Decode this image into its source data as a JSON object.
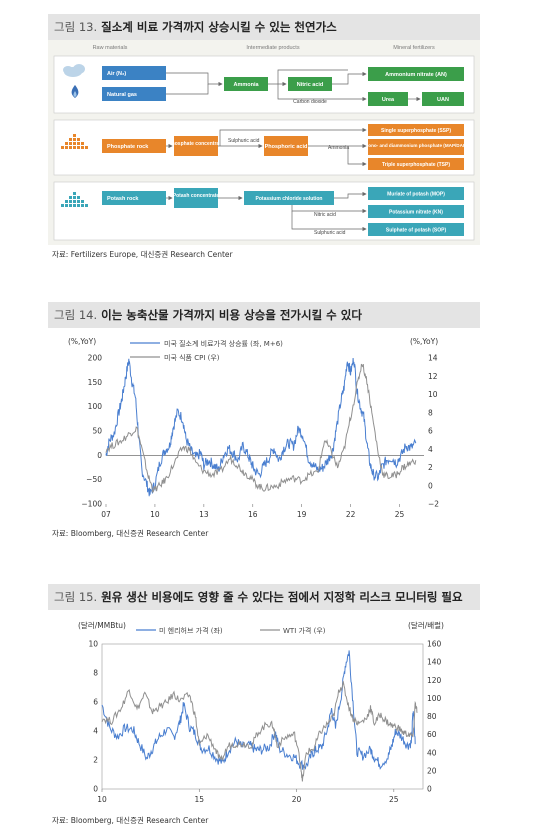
{
  "fig13": {
    "title_num": "그림 13.",
    "title_text": "질소계 비료 가격까지 상승시킬 수 있는 천연가스",
    "headers": [
      "Raw materials",
      "Intermediate products",
      "Mineral fertilizers"
    ],
    "row1": {
      "raw": [
        "Air (N₂)",
        "Natural gas"
      ],
      "mid": [
        "Ammonia",
        "Nitric acid",
        "Carbon dioxide"
      ],
      "out": [
        "Ammonium nitrate (AN)",
        "Urea",
        "UAN"
      ]
    },
    "row2": {
      "raw": "Phosphate rock",
      "mid": [
        "Phosphate concentrate",
        "Sulphuric acid",
        "Phosphoric acid",
        "Ammonia"
      ],
      "out": [
        "Single superphosphate (SSP)",
        "Mono- and diammonium phosphate (MAP/DAP)",
        "Triple superphosphate (TSP)"
      ]
    },
    "row3": {
      "raw": "Potash rock",
      "mid": [
        "Potash concentrate",
        "Potassium chloride solution",
        "Nitric acid",
        "Sulphuric acid"
      ],
      "out": [
        "Muriate of potash (MOP)",
        "Potassium nitrate (KN)",
        "Sulphate of potash (SOP)"
      ]
    },
    "source": "자료: Fertilizers Europe, 대신증권 Research Center"
  },
  "fig14": {
    "title_num": "그림 14.",
    "title_text": "이는 농축산물 가격까지 비용 상승을 전가시킬 수 있다",
    "source": "자료: Bloomberg, 대신증권 Research Center",
    "chart_data": {
      "type": "line",
      "left_unit": "(%,YoY)",
      "right_unit": "(%,YoY)",
      "x_ticks": [
        "07",
        "10",
        "13",
        "16",
        "19",
        "22",
        "25"
      ],
      "left_ticks": [
        "200",
        "150",
        "100",
        "50",
        "0",
        "-50",
        "-100"
      ],
      "right_ticks": [
        "14",
        "12",
        "10",
        "8",
        "6",
        "4",
        "2",
        "0",
        "-2"
      ],
      "ylim_left": [
        -100,
        200
      ],
      "ylim_right": [
        -2,
        14
      ],
      "xlim": [
        2007,
        2026.5
      ],
      "series": [
        {
          "name": "미국 질소계 비료가격 상승률 (좌, M+6)",
          "axis": "left",
          "color": "#4a7fd0",
          "points": [
            [
              2007,
              0
            ],
            [
              2007.2,
              30
            ],
            [
              2007.5,
              45
            ],
            [
              2007.8,
              90
            ],
            [
              2008.0,
              120
            ],
            [
              2008.2,
              160
            ],
            [
              2008.4,
              196
            ],
            [
              2008.6,
              150
            ],
            [
              2008.8,
              120
            ],
            [
              2009.0,
              40
            ],
            [
              2009.2,
              -30
            ],
            [
              2009.5,
              -60
            ],
            [
              2009.7,
              -80
            ],
            [
              2010.0,
              -60
            ],
            [
              2010.3,
              -15
            ],
            [
              2010.6,
              10
            ],
            [
              2010.9,
              20
            ],
            [
              2011.1,
              55
            ],
            [
              2011.4,
              90
            ],
            [
              2011.7,
              75
            ],
            [
              2011.9,
              35
            ],
            [
              2012.2,
              10
            ],
            [
              2012.5,
              -5
            ],
            [
              2012.8,
              5
            ],
            [
              2013.0,
              -20
            ],
            [
              2013.3,
              -10
            ],
            [
              2013.6,
              -20
            ],
            [
              2013.9,
              -30
            ],
            [
              2014.2,
              0
            ],
            [
              2014.5,
              15
            ],
            [
              2014.8,
              5
            ],
            [
              2015.1,
              -10
            ],
            [
              2015.4,
              20
            ],
            [
              2015.7,
              0
            ],
            [
              2015.9,
              -15
            ],
            [
              2016.1,
              -30
            ],
            [
              2016.4,
              -40
            ],
            [
              2016.7,
              -20
            ],
            [
              2017.0,
              -5
            ],
            [
              2017.3,
              15
            ],
            [
              2017.6,
              -10
            ],
            [
              2017.9,
              15
            ],
            [
              2018.2,
              25
            ],
            [
              2018.5,
              20
            ],
            [
              2018.8,
              55
            ],
            [
              2019.1,
              40
            ],
            [
              2019.4,
              -5
            ],
            [
              2019.7,
              -20
            ],
            [
              2020.0,
              -30
            ],
            [
              2020.3,
              -25
            ],
            [
              2020.6,
              -10
            ],
            [
              2020.9,
              10
            ],
            [
              2021.1,
              50
            ],
            [
              2021.4,
              110
            ],
            [
              2021.6,
              140
            ],
            [
              2021.8,
              195
            ],
            [
              2022.0,
              170
            ],
            [
              2022.2,
              200
            ],
            [
              2022.4,
              130
            ],
            [
              2022.6,
              100
            ],
            [
              2022.8,
              80
            ],
            [
              2023.0,
              25
            ],
            [
              2023.2,
              -20
            ],
            [
              2023.4,
              -40
            ],
            [
              2023.7,
              -45
            ],
            [
              2023.9,
              -25
            ],
            [
              2024.2,
              -10
            ],
            [
              2024.5,
              -5
            ],
            [
              2024.8,
              -15
            ],
            [
              2025.1,
              0
            ],
            [
              2025.4,
              20
            ],
            [
              2025.7,
              15
            ],
            [
              2026.0,
              25
            ]
          ]
        },
        {
          "name": "미국 식품 CPI (우)",
          "axis": "right",
          "color": "#909090",
          "points": [
            [
              2007,
              4
            ],
            [
              2007.5,
              4.5
            ],
            [
              2008.0,
              5
            ],
            [
              2008.5,
              5.8
            ],
            [
              2008.9,
              6.3
            ],
            [
              2009.2,
              4
            ],
            [
              2009.6,
              1
            ],
            [
              2009.9,
              -0.5
            ],
            [
              2010.3,
              0
            ],
            [
              2010.7,
              0.8
            ],
            [
              2011.2,
              2.5
            ],
            [
              2011.7,
              4.2
            ],
            [
              2012.1,
              4
            ],
            [
              2012.5,
              2.5
            ],
            [
              2013.0,
              1.6
            ],
            [
              2013.5,
              1.2
            ],
            [
              2014.0,
              1.5
            ],
            [
              2014.6,
              3
            ],
            [
              2015.0,
              2.4
            ],
            [
              2015.4,
              1.6
            ],
            [
              2015.8,
              1
            ],
            [
              2016.2,
              0.2
            ],
            [
              2016.6,
              -0.3
            ],
            [
              2017.0,
              -0.2
            ],
            [
              2017.5,
              0
            ],
            [
              2018.0,
              0.6
            ],
            [
              2018.5,
              0.8
            ],
            [
              2019.0,
              0.6
            ],
            [
              2019.5,
              1.2
            ],
            [
              2020.0,
              1.5
            ],
            [
              2020.4,
              5
            ],
            [
              2020.8,
              3.8
            ],
            [
              2021.2,
              2
            ],
            [
              2021.6,
              4
            ],
            [
              2022.0,
              7.5
            ],
            [
              2022.4,
              11
            ],
            [
              2022.7,
              13.5
            ],
            [
              2023.0,
              11.5
            ],
            [
              2023.3,
              8
            ],
            [
              2023.7,
              3.5
            ],
            [
              2024.0,
              1.2
            ],
            [
              2024.4,
              1
            ],
            [
              2024.8,
              1.2
            ],
            [
              2025.2,
              2
            ],
            [
              2025.6,
              2.4
            ],
            [
              2026.0,
              2.8
            ]
          ]
        }
      ]
    }
  },
  "fig15": {
    "title_num": "그림 15.",
    "title_text": "원유 생산 비용에도 영향 줄 수 있다는 점에서 지정학 리스크 모니터링 필요",
    "source": "자료: Bloomberg, 대신증권 Research Center",
    "chart_data": {
      "type": "line",
      "left_unit": "(달러/MMBtu)",
      "right_unit": "(달러/배럴)",
      "x_ticks": [
        "10",
        "15",
        "20",
        "25"
      ],
      "left_ticks": [
        "10",
        "8",
        "6",
        "4",
        "2",
        "0"
      ],
      "right_ticks": [
        "160",
        "140",
        "120",
        "100",
        "80",
        "60",
        "40",
        "20",
        "0"
      ],
      "ylim_left": [
        0,
        10
      ],
      "ylim_right": [
        0,
        160
      ],
      "xlim": [
        2010,
        2026.5
      ],
      "series": [
        {
          "name": "미 헨리허브 가격 (좌)",
          "axis": "left",
          "color": "#4a7fd0",
          "points": [
            [
              2010,
              5.8
            ],
            [
              2010.4,
              4.2
            ],
            [
              2010.8,
              3.6
            ],
            [
              2011.2,
              4.2
            ],
            [
              2011.6,
              4.1
            ],
            [
              2011.9,
              3.2
            ],
            [
              2012.3,
              2.1
            ],
            [
              2012.6,
              2.8
            ],
            [
              2012.9,
              3.5
            ],
            [
              2013.3,
              4.1
            ],
            [
              2013.7,
              3.6
            ],
            [
              2014.0,
              4.6
            ],
            [
              2014.2,
              5.8
            ],
            [
              2014.5,
              4.3
            ],
            [
              2014.8,
              3.8
            ],
            [
              2015.1,
              2.8
            ],
            [
              2015.5,
              2.8
            ],
            [
              2015.9,
              2.1
            ],
            [
              2016.2,
              1.8
            ],
            [
              2016.5,
              2.7
            ],
            [
              2016.9,
              3.3
            ],
            [
              2017.2,
              2.9
            ],
            [
              2017.6,
              3.0
            ],
            [
              2017.9,
              2.7
            ],
            [
              2018.2,
              2.7
            ],
            [
              2018.6,
              2.9
            ],
            [
              2018.9,
              4.0
            ],
            [
              2019.1,
              2.8
            ],
            [
              2019.5,
              2.4
            ],
            [
              2019.9,
              2.2
            ],
            [
              2020.2,
              1.7
            ],
            [
              2020.5,
              1.6
            ],
            [
              2020.8,
              2.4
            ],
            [
              2021.0,
              2.7
            ],
            [
              2021.3,
              2.9
            ],
            [
              2021.6,
              4.2
            ],
            [
              2021.8,
              5.5
            ],
            [
              2022.0,
              4.2
            ],
            [
              2022.3,
              6.5
            ],
            [
              2022.5,
              8.5
            ],
            [
              2022.7,
              9.5
            ],
            [
              2022.9,
              6.0
            ],
            [
              2023.1,
              2.6
            ],
            [
              2023.4,
              2.3
            ],
            [
              2023.8,
              2.7
            ],
            [
              2024.0,
              2.2
            ],
            [
              2024.3,
              1.7
            ],
            [
              2024.7,
              2.2
            ],
            [
              2024.9,
              3.0
            ],
            [
              2025.1,
              4.0
            ],
            [
              2025.4,
              3.6
            ],
            [
              2025.7,
              3.0
            ],
            [
              2025.9,
              3.2
            ],
            [
              2026.0,
              5.5
            ],
            [
              2026.1,
              3.1
            ]
          ]
        },
        {
          "name": "WTI 가격 (우)",
          "axis": "right",
          "color": "#909090",
          "points": [
            [
              2010,
              78
            ],
            [
              2010.5,
              75
            ],
            [
              2011.0,
              90
            ],
            [
              2011.4,
              110
            ],
            [
              2011.8,
              88
            ],
            [
              2012.2,
              105
            ],
            [
              2012.6,
              85
            ],
            [
              2012.9,
              90
            ],
            [
              2013.3,
              95
            ],
            [
              2013.7,
              105
            ],
            [
              2014.0,
              97
            ],
            [
              2014.5,
              104
            ],
            [
              2014.8,
              80
            ],
            [
              2015.0,
              48
            ],
            [
              2015.4,
              60
            ],
            [
              2015.8,
              45
            ],
            [
              2016.1,
              30
            ],
            [
              2016.5,
              48
            ],
            [
              2016.9,
              50
            ],
            [
              2017.3,
              50
            ],
            [
              2017.7,
              48
            ],
            [
              2018.0,
              62
            ],
            [
              2018.5,
              72
            ],
            [
              2018.8,
              70
            ],
            [
              2019.0,
              48
            ],
            [
              2019.5,
              58
            ],
            [
              2019.9,
              60
            ],
            [
              2020.2,
              30
            ],
            [
              2020.3,
              8
            ],
            [
              2020.5,
              40
            ],
            [
              2020.9,
              45
            ],
            [
              2021.2,
              62
            ],
            [
              2021.6,
              72
            ],
            [
              2021.9,
              80
            ],
            [
              2022.2,
              110
            ],
            [
              2022.4,
              115
            ],
            [
              2022.7,
              90
            ],
            [
              2022.9,
              78
            ],
            [
              2023.2,
              72
            ],
            [
              2023.6,
              78
            ],
            [
              2023.8,
              90
            ],
            [
              2024.0,
              72
            ],
            [
              2024.3,
              82
            ],
            [
              2024.6,
              75
            ],
            [
              2024.9,
              70
            ],
            [
              2025.2,
              68
            ],
            [
              2025.5,
              62
            ],
            [
              2025.8,
              60
            ],
            [
              2026.0,
              58
            ],
            [
              2026.1,
              95
            ],
            [
              2026.2,
              85
            ]
          ]
        }
      ]
    }
  }
}
